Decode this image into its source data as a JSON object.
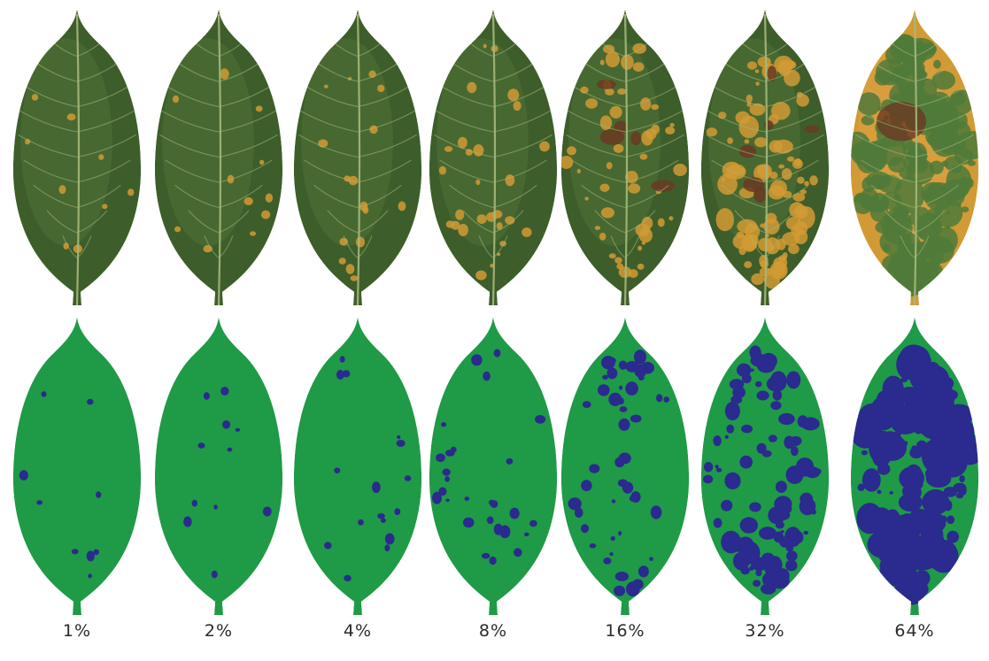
{
  "colors": {
    "healthy_mask": "#1f9a47",
    "lesion_mask": "#2b2a8e",
    "leaf_dark": "#3d5e2b",
    "leaf_mid": "#4f7236",
    "vein": "#a6b87c",
    "rust_spot": "#d29a34",
    "necrotic_spot": "#6a3a22",
    "background": "#ffffff"
  },
  "leaves": [
    {
      "severity": 0.01,
      "label": "1%"
    },
    {
      "severity": 0.02,
      "label": "2%"
    },
    {
      "severity": 0.04,
      "label": "4%"
    },
    {
      "severity": 0.08,
      "label": "8%"
    },
    {
      "severity": 0.16,
      "label": "16%"
    },
    {
      "severity": 0.32,
      "label": "32%"
    },
    {
      "severity": 0.64,
      "label": "64%"
    }
  ]
}
